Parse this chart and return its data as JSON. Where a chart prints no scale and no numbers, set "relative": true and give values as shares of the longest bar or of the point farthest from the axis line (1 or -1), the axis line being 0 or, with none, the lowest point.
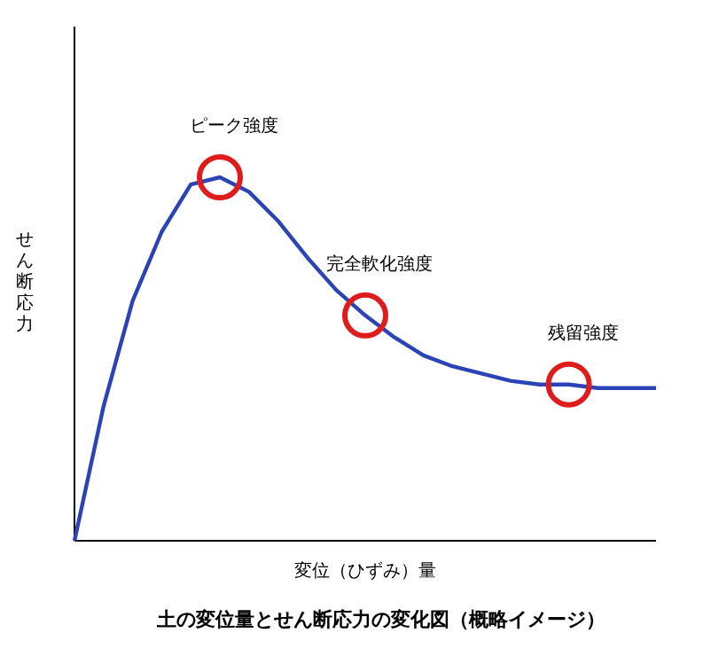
{
  "chart_data": {
    "type": "line",
    "title": "土の変位量とせん断応力の変化図（概略イメージ）",
    "xlabel": "変位（ひずみ）量",
    "ylabel": "せん断応力",
    "relative": true,
    "categories": [
      null,
      null,
      null,
      null,
      null,
      null,
      null,
      null,
      null,
      null,
      null,
      null,
      null,
      null,
      null,
      null,
      null,
      null,
      null,
      null,
      null
    ],
    "series": [
      {
        "color": "#2a44b8",
        "values": [
          0,
          0.37,
          0.66,
          0.85,
          0.98,
          1.0,
          0.96,
          0.88,
          0.78,
          0.69,
          0.62,
          0.56,
          0.51,
          0.48,
          0.46,
          0.44,
          0.43,
          0.43,
          0.42,
          0.42,
          0.42
        ]
      }
    ],
    "annotations": [
      {
        "text": "ピーク強度",
        "y": 1.0
      },
      {
        "text": "完全軟化強度",
        "y": 0.62
      },
      {
        "text": "残留強度",
        "y": 0.43
      }
    ]
  }
}
